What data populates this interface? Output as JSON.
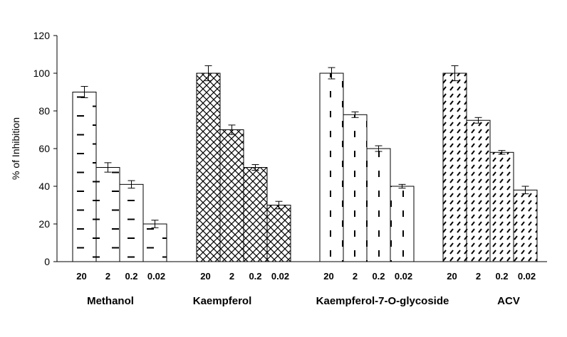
{
  "chart_data": {
    "type": "bar",
    "ylabel": "% of Inhibition",
    "xlabel": "",
    "ylim": [
      0,
      120
    ],
    "yticks": [
      0,
      20,
      40,
      60,
      80,
      100,
      120
    ],
    "concentrations": [
      "20",
      "2",
      "0.2",
      "0.02"
    ],
    "groups": [
      {
        "name": "Methanol",
        "values": [
          90,
          50,
          41,
          20
        ],
        "errors": [
          3,
          2.5,
          2,
          2
        ],
        "pattern": "dash"
      },
      {
        "name": "Kaempferol",
        "values": [
          100,
          70,
          50,
          30
        ],
        "errors": [
          4,
          2.5,
          1.5,
          2
        ],
        "pattern": "crosshatch"
      },
      {
        "name": "Kaempferol-7-O-glycoside",
        "values": [
          100,
          78,
          60,
          40
        ],
        "errors": [
          3,
          1.5,
          1.5,
          1
        ],
        "pattern": "vertical-dash"
      },
      {
        "name": "ACV",
        "values": [
          100,
          75,
          58,
          38
        ],
        "errors": [
          4,
          1.5,
          1,
          2
        ],
        "pattern": "diagonal-dash"
      }
    ],
    "grid": false,
    "legend": "none",
    "colors": {
      "bar_fill": "#ffffff",
      "bar_stroke": "#000000",
      "pattern_mark": "#000000",
      "accent_mark": "#1f5c1f"
    }
  }
}
